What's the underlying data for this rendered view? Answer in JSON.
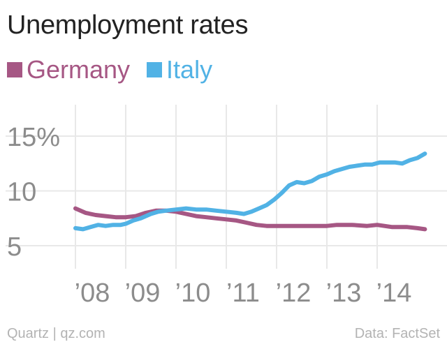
{
  "title": "Unemployment rates",
  "footer": {
    "credit": "Quartz | qz.com",
    "source": "Data: FactSet"
  },
  "colors": {
    "germany": "#a65784",
    "italy": "#51b2e5",
    "grid": "#e8e8e8",
    "tick": "#8c8c8c",
    "background": "#ffffff"
  },
  "chart_data": {
    "type": "line",
    "title": "Unemployment rates",
    "xlabel": "",
    "ylabel": "",
    "xlim": [
      2008,
      2014.95
    ],
    "ylim": [
      3.5,
      16
    ],
    "grid": true,
    "legend_position": "top-left",
    "x_ticks": [
      {
        "value": 2008,
        "label": "’08"
      },
      {
        "value": 2009,
        "label": "’09"
      },
      {
        "value": 2010,
        "label": "’10"
      },
      {
        "value": 2011,
        "label": "’11"
      },
      {
        "value": 2012,
        "label": "’12"
      },
      {
        "value": 2013,
        "label": "’13"
      },
      {
        "value": 2014,
        "label": "’14"
      }
    ],
    "y_ticks": [
      {
        "value": 15,
        "label": "15%"
      },
      {
        "value": 10,
        "label": "10"
      },
      {
        "value": 5,
        "label": "5"
      }
    ],
    "series": [
      {
        "name": "Germany",
        "color": "#a65784",
        "x": [
          2008.0,
          2008.2,
          2008.4,
          2008.6,
          2008.8,
          2009.0,
          2009.2,
          2009.4,
          2009.6,
          2009.8,
          2010.0,
          2010.2,
          2010.4,
          2010.6,
          2010.8,
          2011.0,
          2011.2,
          2011.4,
          2011.6,
          2011.8,
          2012.0,
          2012.5,
          2013.0,
          2013.2,
          2013.5,
          2013.8,
          2014.0,
          2014.3,
          2014.6,
          2014.8,
          2014.95
        ],
        "values": [
          8.4,
          8.0,
          7.8,
          7.7,
          7.6,
          7.6,
          7.7,
          8.0,
          8.2,
          8.2,
          8.1,
          7.9,
          7.7,
          7.6,
          7.5,
          7.4,
          7.3,
          7.1,
          6.9,
          6.8,
          6.8,
          6.8,
          6.8,
          6.9,
          6.9,
          6.8,
          6.9,
          6.7,
          6.7,
          6.6,
          6.5
        ]
      },
      {
        "name": "Italy",
        "color": "#51b2e5",
        "x": [
          2008.0,
          2008.15,
          2008.3,
          2008.45,
          2008.6,
          2008.75,
          2008.9,
          2009.0,
          2009.15,
          2009.3,
          2009.5,
          2009.65,
          2009.8,
          2010.0,
          2010.2,
          2010.4,
          2010.6,
          2010.8,
          2011.0,
          2011.2,
          2011.35,
          2011.5,
          2011.65,
          2011.8,
          2011.95,
          2012.1,
          2012.25,
          2012.4,
          2012.55,
          2012.7,
          2012.85,
          2013.0,
          2013.15,
          2013.3,
          2013.45,
          2013.6,
          2013.75,
          2013.9,
          2014.05,
          2014.2,
          2014.35,
          2014.5,
          2014.65,
          2014.8,
          2014.95
        ],
        "values": [
          6.6,
          6.5,
          6.7,
          6.9,
          6.8,
          6.9,
          6.9,
          7.0,
          7.3,
          7.5,
          7.9,
          8.1,
          8.2,
          8.3,
          8.4,
          8.3,
          8.3,
          8.2,
          8.1,
          8.0,
          7.9,
          8.1,
          8.4,
          8.7,
          9.2,
          9.8,
          10.5,
          10.8,
          10.7,
          10.9,
          11.3,
          11.5,
          11.8,
          12.0,
          12.2,
          12.3,
          12.4,
          12.4,
          12.6,
          12.6,
          12.6,
          12.5,
          12.8,
          13.0,
          13.4
        ]
      }
    ]
  }
}
